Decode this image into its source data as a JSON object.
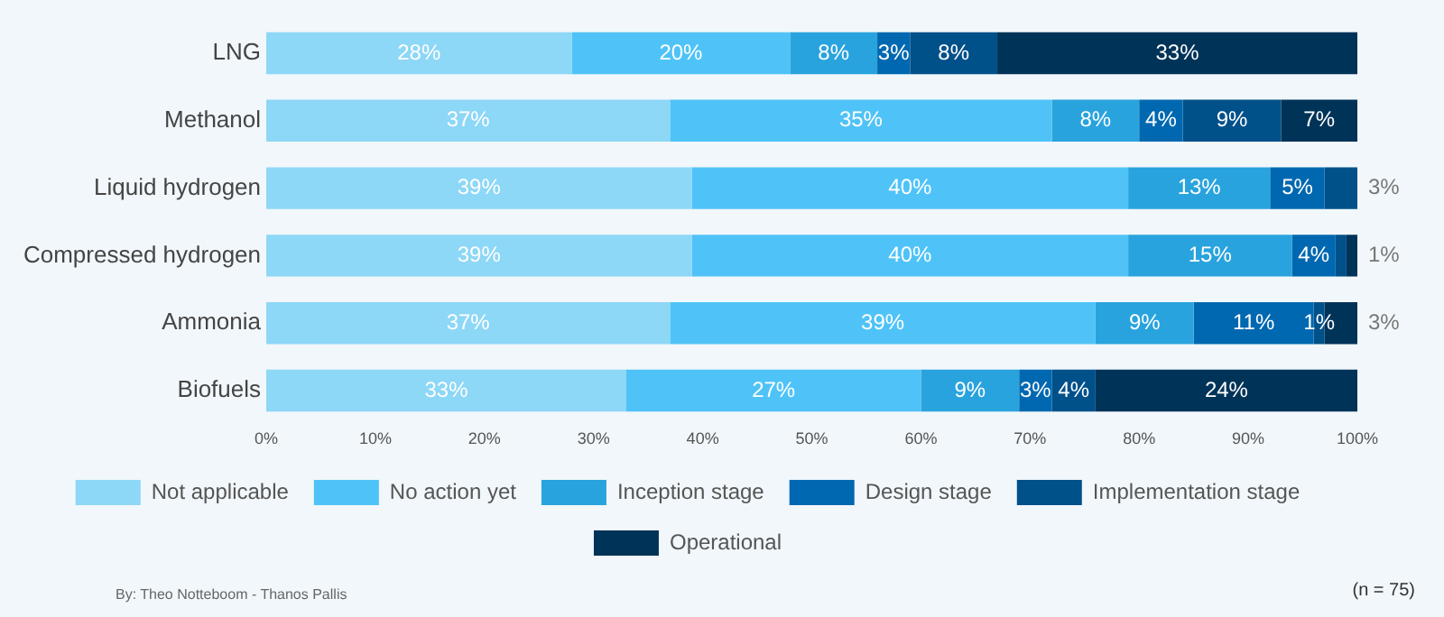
{
  "chart_data": {
    "type": "bar",
    "orientation": "horizontal",
    "stacked": true,
    "categories": [
      "LNG",
      "Methanol",
      "Liquid hydrogen",
      "Compressed hydrogen",
      "Ammonia",
      "Biofuels"
    ],
    "series": [
      {
        "name": "Not applicable",
        "color": "#8dd7f7",
        "values": [
          28,
          37,
          39,
          39,
          37,
          33
        ],
        "value_labels": [
          "28%",
          "37%",
          "39%",
          "39%",
          "37%",
          "33%"
        ]
      },
      {
        "name": "No action yet",
        "color": "#4fc3f7",
        "values": [
          20,
          35,
          40,
          40,
          39,
          27
        ],
        "value_labels": [
          "20%",
          "35%",
          "40%",
          "40%",
          "39%",
          "27%"
        ]
      },
      {
        "name": "Inception stage",
        "color": "#29a3dd",
        "values": [
          8,
          8,
          13,
          15,
          9,
          9
        ],
        "value_labels": [
          "8%",
          "8%",
          "13%",
          "15%",
          "9%",
          "9%"
        ]
      },
      {
        "name": "Design stage",
        "color": "#0068b0",
        "values": [
          3,
          4,
          5,
          4,
          11,
          3
        ],
        "value_labels": [
          "3%",
          "4%",
          "5%",
          "4%",
          "11%",
          "3%"
        ]
      },
      {
        "name": "Implementation stage",
        "color": "#00508a",
        "values": [
          8,
          9,
          3,
          1,
          1,
          4
        ],
        "value_labels": [
          "8%",
          "9%",
          "3%",
          null,
          "1%",
          "4%"
        ]
      },
      {
        "name": "Operational",
        "color": "#003358",
        "values": [
          33,
          7,
          null,
          1,
          3,
          24
        ],
        "value_labels": [
          "33%",
          "7%",
          null,
          "1%",
          "3%",
          "24%"
        ]
      }
    ],
    "xlim": [
      0,
      100
    ],
    "xticks": [
      {
        "value": 0,
        "label": "0%"
      },
      {
        "value": 10,
        "label": "10%"
      },
      {
        "value": 20,
        "label": "20%"
      },
      {
        "value": 30,
        "label": "30%"
      },
      {
        "value": 40,
        "label": "40%"
      },
      {
        "value": 50,
        "label": "50%"
      },
      {
        "value": 60,
        "label": "60%"
      },
      {
        "value": 70,
        "label": "70%"
      },
      {
        "value": 80,
        "label": "80%"
      },
      {
        "value": 90,
        "label": "90%"
      },
      {
        "value": 100,
        "label": "100%"
      }
    ],
    "grid": false,
    "legend": "bottom",
    "annotations": [
      "By: Theo Notteboom - Thanos Pallis",
      "(n = 75)"
    ]
  }
}
